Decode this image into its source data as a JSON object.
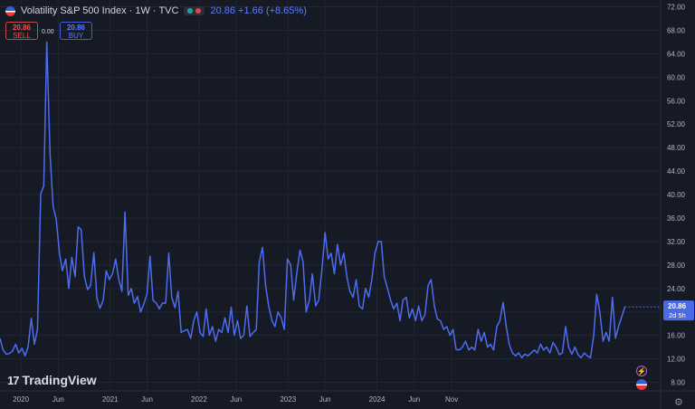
{
  "header": {
    "symbol": "Volatility S&P 500 Index · 1W · TVC",
    "change": "20.86 +1.66 (+8.65%)"
  },
  "trade": {
    "sell_price": "20.86",
    "sell_label": "SELL",
    "spread": "0.00",
    "buy_price": "20.86",
    "buy_label": "BUY"
  },
  "branding": {
    "logo_mark": "17",
    "logo_text": "TradingView"
  },
  "colors": {
    "line": "#4d6cf0",
    "price_tag": "#4a6ae8",
    "background": "#161a25",
    "grid": "#232733"
  },
  "chart_data": {
    "type": "line",
    "title": "Volatility S&P 500 Index",
    "xlabel": "",
    "ylabel": "",
    "ylim": [
      6,
      72
    ],
    "yticks": [
      "72.00",
      "68.00",
      "64.00",
      "60.00",
      "56.00",
      "52.00",
      "48.00",
      "44.00",
      "40.00",
      "36.00",
      "32.00",
      "28.00",
      "24.00",
      "20.00",
      "16.00",
      "12.00",
      "8.00"
    ],
    "xticks": [
      {
        "label": "2020",
        "t": 0
      },
      {
        "label": "Jun",
        "t": 21.9
      },
      {
        "label": "2021",
        "t": 52.4
      },
      {
        "label": "Jun",
        "t": 74.1
      },
      {
        "label": "2022",
        "t": 104.6
      },
      {
        "label": "Jun",
        "t": 126.3
      },
      {
        "label": "2023",
        "t": 156.9
      },
      {
        "label": "Jun",
        "t": 178.6
      },
      {
        "label": "2024",
        "t": 209.1
      },
      {
        "label": "Jun",
        "t": 231.0
      },
      {
        "label": "Nov",
        "t": 253.0
      }
    ],
    "last_value": "20.86",
    "last_time": "2d 5h",
    "grid": true,
    "series": [
      {
        "values": [
          [
            -12.3,
            15.5
          ],
          [
            -10.5,
            13.5
          ],
          [
            -8.6,
            12.8
          ],
          [
            -6.8,
            12.9
          ],
          [
            -5.0,
            13.3
          ],
          [
            -3.1,
            14.5
          ],
          [
            -1.3,
            13.0
          ],
          [
            0.6,
            13.8
          ],
          [
            2.4,
            12.5
          ],
          [
            4.2,
            14.0
          ],
          [
            6.1,
            18.9
          ],
          [
            7.9,
            14.5
          ],
          [
            9.7,
            17.0
          ],
          [
            11.6,
            40.1
          ],
          [
            13.4,
            41.5
          ],
          [
            15.2,
            66.0
          ],
          [
            17.1,
            47.0
          ],
          [
            18.9,
            38.0
          ],
          [
            20.7,
            35.8
          ],
          [
            22.6,
            30.0
          ],
          [
            24.4,
            27.0
          ],
          [
            26.3,
            29.0
          ],
          [
            28.1,
            24.0
          ],
          [
            29.9,
            29.3
          ],
          [
            31.8,
            26.0
          ],
          [
            33.6,
            34.5
          ],
          [
            35.4,
            34.0
          ],
          [
            37.3,
            26.0
          ],
          [
            39.1,
            23.8
          ],
          [
            40.9,
            24.5
          ],
          [
            42.8,
            30.1
          ],
          [
            44.6,
            22.3
          ],
          [
            46.4,
            20.6
          ],
          [
            48.3,
            22.0
          ],
          [
            50.1,
            27.0
          ],
          [
            51.9,
            25.5
          ],
          [
            53.8,
            26.5
          ],
          [
            55.6,
            29.0
          ],
          [
            57.5,
            25.5
          ],
          [
            59.3,
            23.5
          ],
          [
            61.1,
            37.0
          ],
          [
            63.0,
            22.8
          ],
          [
            64.8,
            24.0
          ],
          [
            66.6,
            21.5
          ],
          [
            68.5,
            22.6
          ],
          [
            70.3,
            20.0
          ],
          [
            72.1,
            21.3
          ],
          [
            74.0,
            23.0
          ],
          [
            75.8,
            29.5
          ],
          [
            77.6,
            22.0
          ],
          [
            79.5,
            21.5
          ],
          [
            81.3,
            20.5
          ],
          [
            83.1,
            21.5
          ],
          [
            85.0,
            21.5
          ],
          [
            86.8,
            30.0
          ],
          [
            88.6,
            22.5
          ],
          [
            90.5,
            20.7
          ],
          [
            92.3,
            23.5
          ],
          [
            94.1,
            16.5
          ],
          [
            96.0,
            16.8
          ],
          [
            97.8,
            17.0
          ],
          [
            99.7,
            15.5
          ],
          [
            101.5,
            18.5
          ],
          [
            103.3,
            20.0
          ],
          [
            105.2,
            16.5
          ],
          [
            107.0,
            15.8
          ],
          [
            108.8,
            20.5
          ],
          [
            110.7,
            16.0
          ],
          [
            112.5,
            17.5
          ],
          [
            114.3,
            15.0
          ],
          [
            116.2,
            17.0
          ],
          [
            118.0,
            16.5
          ],
          [
            119.8,
            19.0
          ],
          [
            121.7,
            16.5
          ],
          [
            123.5,
            20.8
          ],
          [
            125.3,
            16.0
          ],
          [
            127.2,
            18.5
          ],
          [
            129.0,
            15.5
          ],
          [
            130.9,
            16.0
          ],
          [
            132.7,
            21.0
          ],
          [
            134.5,
            15.8
          ],
          [
            136.4,
            16.5
          ],
          [
            138.2,
            17.0
          ],
          [
            140.0,
            28.5
          ],
          [
            141.9,
            31.0
          ],
          [
            143.7,
            24.5
          ],
          [
            145.5,
            21.0
          ],
          [
            147.4,
            18.5
          ],
          [
            149.2,
            17.5
          ],
          [
            151.0,
            20.0
          ],
          [
            152.9,
            19.0
          ],
          [
            154.7,
            17.0
          ],
          [
            156.5,
            29.0
          ],
          [
            158.4,
            28.0
          ],
          [
            160.2,
            22.0
          ],
          [
            162.0,
            26.5
          ],
          [
            163.9,
            30.5
          ],
          [
            165.7,
            28.5
          ],
          [
            167.5,
            20.0
          ],
          [
            169.4,
            22.0
          ],
          [
            171.2,
            26.5
          ],
          [
            173.1,
            21.0
          ],
          [
            174.9,
            22.0
          ],
          [
            176.7,
            27.0
          ],
          [
            178.6,
            33.5
          ],
          [
            180.4,
            29.0
          ],
          [
            182.2,
            30.0
          ],
          [
            184.1,
            26.5
          ],
          [
            185.9,
            31.5
          ],
          [
            187.7,
            28.0
          ],
          [
            189.6,
            30.0
          ],
          [
            191.4,
            26.0
          ],
          [
            193.2,
            23.5
          ],
          [
            195.1,
            22.5
          ],
          [
            196.9,
            25.5
          ],
          [
            198.7,
            21.0
          ],
          [
            200.6,
            20.5
          ],
          [
            202.4,
            24.0
          ],
          [
            204.3,
            22.5
          ],
          [
            206.1,
            25.5
          ],
          [
            207.9,
            30.0
          ],
          [
            209.8,
            32.0
          ],
          [
            211.6,
            32.0
          ],
          [
            213.4,
            26.0
          ],
          [
            215.3,
            24.0
          ],
          [
            217.1,
            22.0
          ],
          [
            218.9,
            20.5
          ],
          [
            220.8,
            21.5
          ],
          [
            222.6,
            18.5
          ],
          [
            224.4,
            22.0
          ],
          [
            226.3,
            22.5
          ],
          [
            228.1,
            19.0
          ],
          [
            229.9,
            20.5
          ],
          [
            231.8,
            18.5
          ],
          [
            233.6,
            21.0
          ],
          [
            235.4,
            18.5
          ],
          [
            237.3,
            19.5
          ],
          [
            239.1,
            24.5
          ],
          [
            240.9,
            25.5
          ],
          [
            242.8,
            21.0
          ],
          [
            244.6,
            18.8
          ],
          [
            246.4,
            18.5
          ],
          [
            248.3,
            17.0
          ],
          [
            250.1,
            17.5
          ],
          [
            252.0,
            16.0
          ],
          [
            253.8,
            17.0
          ],
          [
            255.6,
            13.6
          ],
          [
            257.5,
            13.5
          ],
          [
            259.3,
            14.0
          ],
          [
            261.1,
            15.0
          ],
          [
            263.0,
            13.5
          ],
          [
            264.8,
            14.0
          ],
          [
            266.6,
            13.5
          ],
          [
            268.5,
            17.0
          ],
          [
            270.3,
            15.0
          ],
          [
            272.1,
            16.5
          ],
          [
            274.0,
            14.0
          ],
          [
            275.8,
            14.5
          ],
          [
            277.6,
            13.5
          ],
          [
            279.5,
            17.5
          ],
          [
            281.3,
            18.5
          ],
          [
            283.2,
            21.6
          ],
          [
            285.0,
            17.5
          ],
          [
            286.8,
            14.5
          ],
          [
            288.7,
            13.0
          ],
          [
            290.5,
            12.5
          ],
          [
            292.3,
            13.0
          ],
          [
            294.2,
            12.2
          ],
          [
            296.0,
            12.8
          ],
          [
            297.8,
            12.5
          ],
          [
            299.7,
            13.0
          ],
          [
            301.5,
            13.5
          ],
          [
            303.3,
            13.0
          ],
          [
            305.2,
            14.5
          ],
          [
            307.0,
            13.5
          ],
          [
            308.8,
            14.0
          ],
          [
            310.7,
            13.0
          ],
          [
            312.5,
            14.8
          ],
          [
            314.3,
            14.0
          ],
          [
            316.2,
            12.7
          ],
          [
            318.0,
            13.0
          ],
          [
            319.9,
            17.5
          ],
          [
            321.7,
            14.0
          ],
          [
            323.5,
            12.8
          ],
          [
            325.4,
            14.0
          ],
          [
            327.2,
            12.7
          ],
          [
            329.0,
            12.2
          ],
          [
            330.9,
            13.0
          ],
          [
            332.7,
            12.5
          ],
          [
            334.5,
            12.2
          ],
          [
            336.4,
            16.0
          ],
          [
            338.2,
            23.0
          ],
          [
            340.0,
            20.0
          ],
          [
            341.9,
            15.0
          ],
          [
            343.7,
            16.5
          ],
          [
            345.5,
            15.0
          ],
          [
            347.4,
            22.5
          ],
          [
            349.2,
            15.5
          ],
          [
            351.0,
            17.5
          ],
          [
            352.9,
            19.2
          ],
          [
            354.7,
            20.86
          ]
        ]
      }
    ]
  }
}
